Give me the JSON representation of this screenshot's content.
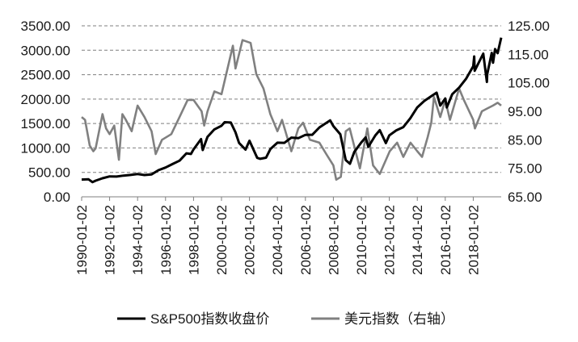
{
  "chart_data": {
    "type": "line",
    "title": "",
    "xlabel": "",
    "ylabel_left": "",
    "ylabel_right": "",
    "grid": true,
    "legend_position": "bottom",
    "y_left": {
      "min": 0,
      "max": 3500,
      "ticks": [
        "0.00",
        "500.00",
        "1000.00",
        "1500.00",
        "2000.00",
        "2500.00",
        "3000.00",
        "3500.00"
      ]
    },
    "y_right": {
      "min": 65,
      "max": 125,
      "ticks": [
        "65.00",
        "75.00",
        "85.00",
        "95.00",
        "105.00",
        "115.00",
        "125.00"
      ]
    },
    "x_ticks": [
      "1990-01-02",
      "1992-01-02",
      "1994-01-02",
      "1996-01-02",
      "1998-01-02",
      "2000-01-02",
      "2002-01-02",
      "2004-01-02",
      "2006-01-02",
      "2008-01-02",
      "2010-01-02",
      "2012-01-02",
      "2014-01-02",
      "2016-01-02",
      "2018-01-02"
    ],
    "x_range": [
      "1990-01-02",
      "2020-01-02"
    ],
    "series": [
      {
        "name": "S&P500指数收盘价",
        "axis": "left",
        "color": "#000000",
        "x": [
          "1990-01-02",
          "1990-07-01",
          "1990-10-11",
          "1991-01-02",
          "1991-07-01",
          "1992-01-02",
          "1992-07-01",
          "1993-01-02",
          "1993-07-01",
          "1994-01-02",
          "1994-07-01",
          "1995-01-02",
          "1995-07-01",
          "1996-01-02",
          "1996-07-01",
          "1997-01-02",
          "1997-07-01",
          "1997-10-27",
          "1998-01-02",
          "1998-07-17",
          "1998-08-31",
          "1999-01-02",
          "1999-07-01",
          "2000-01-02",
          "2000-03-24",
          "2000-09-01",
          "2001-01-02",
          "2001-04-04",
          "2001-09-21",
          "2002-01-02",
          "2002-07-23",
          "2002-10-09",
          "2003-03-11",
          "2003-07-01",
          "2004-01-02",
          "2004-07-01",
          "2005-01-02",
          "2005-07-01",
          "2006-01-02",
          "2006-07-01",
          "2007-01-02",
          "2007-10-09",
          "2008-01-02",
          "2008-07-01",
          "2008-11-20",
          "2009-03-09",
          "2009-07-01",
          "2010-01-02",
          "2010-04-23",
          "2010-07-02",
          "2011-01-02",
          "2011-04-29",
          "2011-10-03",
          "2012-01-02",
          "2012-07-01",
          "2013-01-02",
          "2013-07-01",
          "2014-01-02",
          "2014-07-01",
          "2015-01-02",
          "2015-05-21",
          "2015-08-25",
          "2016-01-02",
          "2016-02-11",
          "2016-07-01",
          "2017-01-02",
          "2017-07-01",
          "2018-01-02",
          "2018-01-26",
          "2018-02-08",
          "2018-09-20",
          "2018-12-24",
          "2019-01-02",
          "2019-04-30",
          "2019-06-03",
          "2019-07-26",
          "2019-10-01",
          "2019-11-29",
          "2020-01-02"
        ],
        "values": [
          353,
          358,
          300,
          330,
          380,
          417,
          415,
          435,
          448,
          466,
          446,
          459,
          545,
          600,
          670,
          740,
          890,
          876,
          970,
          1180,
          957,
          1229,
          1380,
          1455,
          1527,
          1520,
          1320,
          1103,
          966,
          1148,
          797,
          777,
          800,
          975,
          1108,
          1105,
          1212,
          1200,
          1268,
          1270,
          1420,
          1565,
          1447,
          1280,
          752,
          677,
          920,
          1115,
          1217,
          1022,
          1257,
          1363,
          1099,
          1258,
          1360,
          1426,
          1606,
          1831,
          1960,
          2058,
          2131,
          1868,
          2012,
          1829,
          2100,
          2238,
          2420,
          2673,
          2873,
          2581,
          2930,
          2351,
          2510,
          2945,
          2744,
          3025,
          2940,
          3141,
          3257
        ]
      },
      {
        "name": "美元指数（右轴）",
        "axis": "right",
        "color": "#808080",
        "x": [
          "1990-01-02",
          "1990-04-01",
          "1990-08-01",
          "1990-11-01",
          "1991-01-02",
          "1991-07-01",
          "1991-10-01",
          "1992-01-02",
          "1992-05-01",
          "1992-09-01",
          "1992-12-01",
          "1993-03-01",
          "1993-08-01",
          "1994-01-02",
          "1994-07-01",
          "1995-01-02",
          "1995-04-19",
          "1995-10-01",
          "1996-06-01",
          "1997-01-02",
          "1997-08-01",
          "1998-01-02",
          "1998-08-01",
          "1998-10-07",
          "1999-01-02",
          "1999-07-01",
          "2000-01-02",
          "2000-10-26",
          "2001-01-02",
          "2001-07-05",
          "2002-01-31",
          "2002-07-01",
          "2003-01-02",
          "2003-07-01",
          "2004-01-02",
          "2004-05-01",
          "2004-12-30",
          "2005-07-01",
          "2005-11-01",
          "2006-05-01",
          "2007-01-02",
          "2007-07-01",
          "2008-01-02",
          "2008-03-16",
          "2008-07-15",
          "2008-11-21",
          "2009-03-04",
          "2009-11-25",
          "2010-06-07",
          "2010-11-04",
          "2011-04-29",
          "2011-07-01",
          "2012-01-13",
          "2012-07-24",
          "2013-01-02",
          "2013-07-08",
          "2014-01-02",
          "2014-05-06",
          "2014-10-01",
          "2015-01-02",
          "2015-03-13",
          "2015-08-24",
          "2016-01-02",
          "2016-05-03",
          "2016-12-28",
          "2017-05-01",
          "2018-01-02",
          "2018-02-15",
          "2018-08-15",
          "2019-01-02",
          "2019-06-01",
          "2019-10-01",
          "2020-01-02"
        ],
        "values": [
          93,
          92,
          83,
          81,
          82,
          94,
          89,
          87,
          90,
          78,
          94,
          92,
          88,
          97,
          93,
          88,
          80,
          85,
          87,
          93,
          99,
          99,
          95,
          90,
          95,
          102,
          101,
          118,
          110,
          120,
          119,
          108,
          103,
          94,
          88,
          92,
          81,
          89,
          91,
          85,
          84,
          80,
          76,
          71,
          72,
          88,
          89,
          75,
          89,
          76,
          73,
          75,
          81,
          84,
          79,
          84,
          81,
          79,
          86,
          91,
          100,
          93,
          99,
          92,
          103,
          99,
          92,
          89,
          95,
          96,
          97,
          98,
          97
        ]
      }
    ]
  }
}
